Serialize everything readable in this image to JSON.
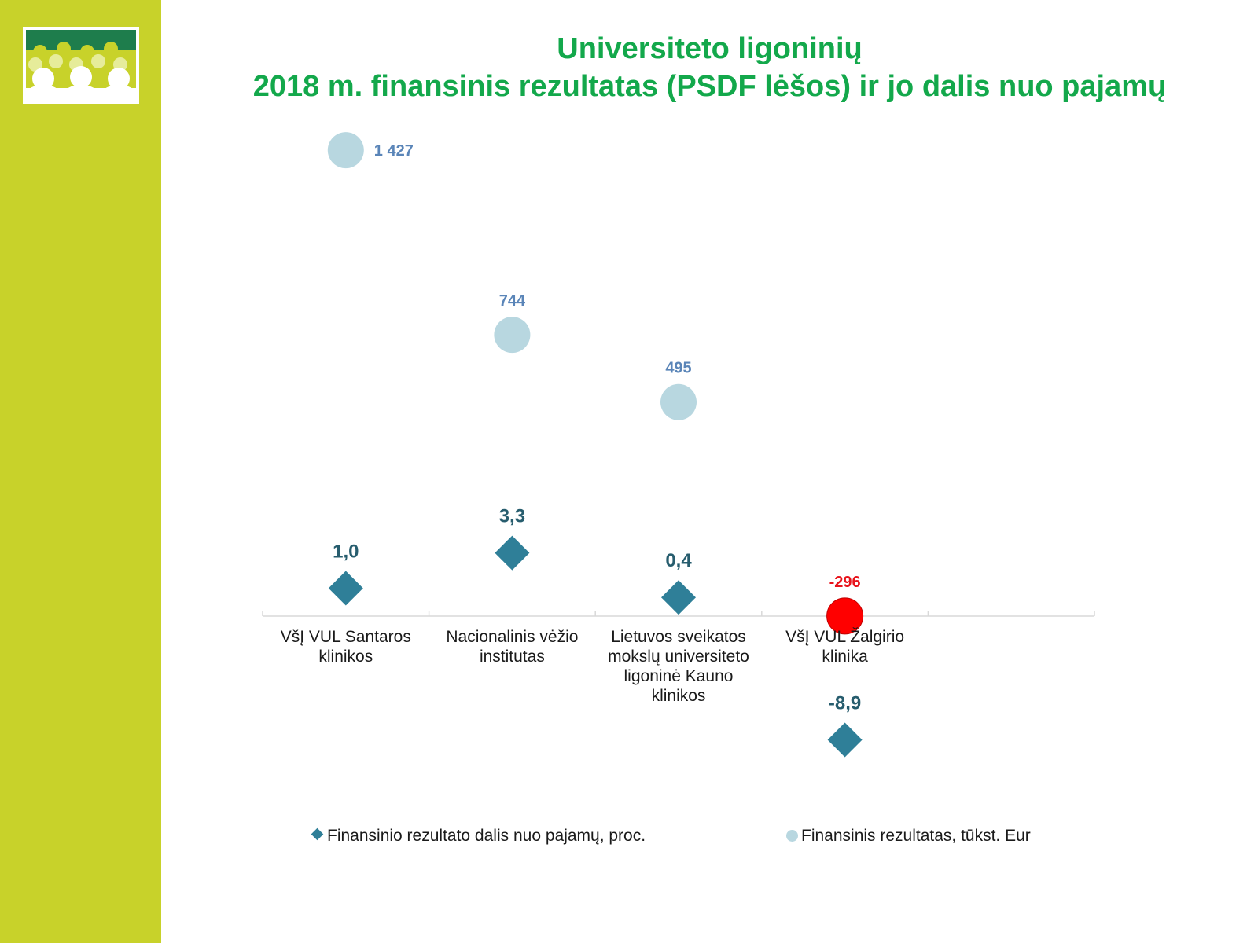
{
  "slide": {
    "title_line1": "Universiteto ligoninių",
    "title_line2": "2018 m. finansinis rezultatas (PSDF lėšos) ir jo dalis nuo pajamų"
  },
  "colors": {
    "sidebar": "#c8d22a",
    "title": "#13a84b",
    "diamond": "#2f7f98",
    "circle": "#b8d7e0",
    "circle_negative": "#ff0000",
    "diamond_label": "#275d6e",
    "circle_label": "#5a85b8",
    "negative_label": "#e8131b"
  },
  "chart_data": {
    "type": "scatter",
    "categories": [
      "VšĮ VUL Santaros klinikos",
      "Nacionalinis vėžio institutas",
      "Lietuvos sveikatos mokslų universiteto ligoninė Kauno klinikos",
      "VšĮ VUL Žalgirio klinika"
    ],
    "series": [
      {
        "name": "Finansinio rezultato dalis nuo pajamų, proc.",
        "marker": "diamond",
        "values": [
          1.0,
          3.3,
          0.4,
          -8.9
        ],
        "labels": [
          "1,0",
          "3,3",
          "0,4",
          "-8,9"
        ]
      },
      {
        "name": "Finansinis rezultatas, tūkst. Eur",
        "marker": "circle",
        "values": [
          1427,
          744,
          495,
          -296
        ],
        "labels": [
          "1 427",
          "744",
          "495",
          "-296"
        ]
      }
    ],
    "legend_position": "bottom",
    "grid": false
  }
}
